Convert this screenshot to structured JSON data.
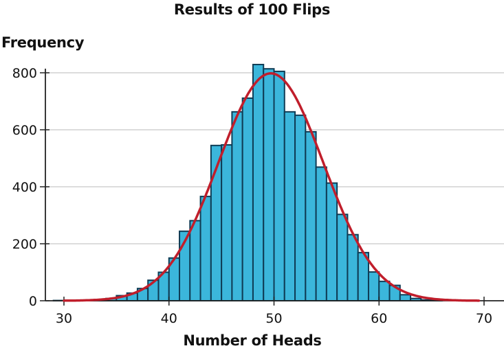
{
  "chart_data": {
    "type": "bar",
    "subtype": "histogram_with_normal_curve",
    "title": "Results of 100 Flips",
    "xlabel": "Number of Heads",
    "ylabel": "Frequency",
    "xlim": [
      29,
      72
    ],
    "ylim": [
      0,
      800
    ],
    "xticks": [
      30,
      40,
      50,
      60,
      70
    ],
    "yticks": [
      0,
      200,
      400,
      600,
      800
    ],
    "grid": "horizontal",
    "legend": "none",
    "bin_width": 1,
    "bins": [
      29,
      30,
      31,
      32,
      33,
      34,
      35,
      36,
      37,
      38,
      39,
      40,
      41,
      42,
      43,
      44,
      45,
      46,
      47,
      48,
      49,
      50,
      51,
      52,
      53,
      54,
      55,
      56,
      57,
      58,
      59,
      60,
      61,
      62,
      63,
      64,
      65
    ],
    "values": [
      1,
      1,
      1,
      2,
      4,
      8,
      18,
      27,
      43,
      72,
      100,
      150,
      244,
      281,
      366,
      545,
      547,
      663,
      711,
      829,
      814,
      805,
      663,
      651,
      593,
      469,
      413,
      303,
      232,
      169,
      101,
      68,
      54,
      21,
      8,
      3,
      1
    ],
    "series": [
      {
        "name": "Frequency",
        "type": "bar",
        "color": "#3bb6db",
        "edge_color": "#0f3c55"
      },
      {
        "name": "Normal curve",
        "type": "line",
        "color": "#c01e2b",
        "mean": 49.7,
        "sd": 5.0,
        "peak": 798,
        "x_range": [
          30,
          69.5
        ]
      }
    ]
  },
  "labels": {
    "title": "Results of 100 Flips",
    "xlabel": "Number of Heads",
    "ylabel": "Frequency"
  },
  "colors": {
    "bar_fill": "#3bb6db",
    "bar_edge": "#0f3c55",
    "curve": "#c01e2b",
    "grid": "#c8c8c8",
    "axis": "#222222"
  }
}
